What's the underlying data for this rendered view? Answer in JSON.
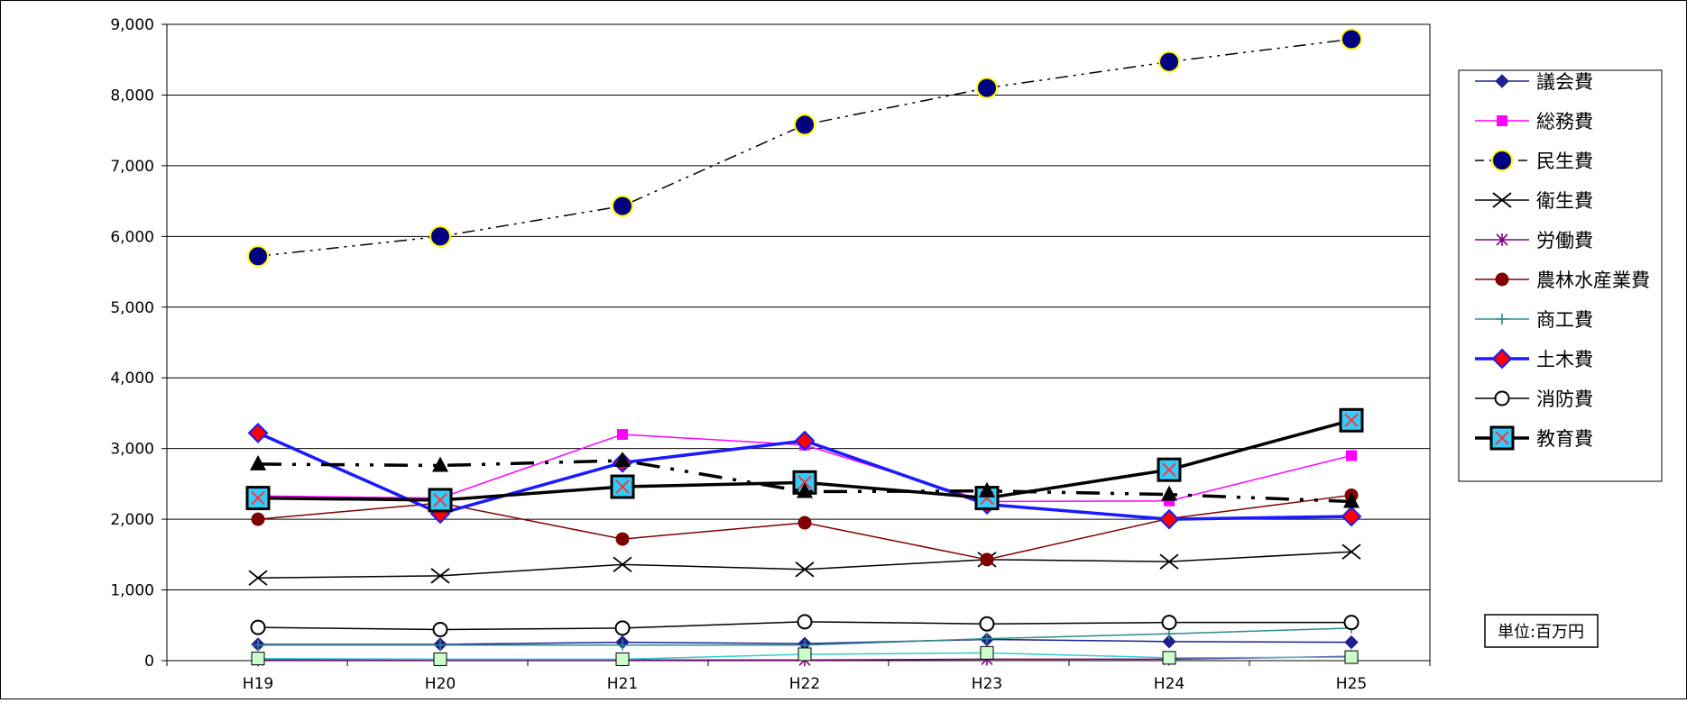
{
  "chart_data": {
    "type": "line",
    "categories": [
      "H19",
      "H20",
      "H21",
      "H22",
      "H23",
      "H24",
      "H25"
    ],
    "ylim": [
      0,
      9000
    ],
    "yticks": [
      "0",
      "1,000",
      "2,000",
      "3,000",
      "4,000",
      "5,000",
      "6,000",
      "7,000",
      "8,000",
      "9,000"
    ],
    "grid": true,
    "legend_position": "right",
    "unit_label": "単位:百万円",
    "series": [
      {
        "name": "議会費",
        "values": [
          230,
          230,
          260,
          240,
          300,
          270,
          260
        ],
        "color": "#1f1f8f",
        "marker": "diamond",
        "line": "solid",
        "width": 1.5
      },
      {
        "name": "総務費",
        "values": [
          2330,
          2300,
          3200,
          3050,
          2250,
          2260,
          2900
        ],
        "color": "#ff00ff",
        "marker": "square",
        "line": "solid",
        "width": 1.5
      },
      {
        "name": "民生費",
        "values": [
          5720,
          6000,
          6430,
          7580,
          8100,
          8470,
          8790
        ],
        "color": "#000000",
        "marker": "navycircle",
        "line": "dashdotdot",
        "width": 1.5
      },
      {
        "name": "衛生費",
        "values": [
          1170,
          1200,
          1360,
          1290,
          1430,
          1400,
          1540
        ],
        "color": "#000000",
        "marker": "x",
        "line": "solid",
        "width": 1.5
      },
      {
        "name": "労働費",
        "values": [
          10,
          10,
          10,
          10,
          20,
          20,
          60
        ],
        "color": "#800080",
        "marker": "star",
        "line": "solid",
        "width": 1.5
      },
      {
        "name": "農林水産業費",
        "values": [
          2000,
          2230,
          1720,
          1950,
          1430,
          2010,
          2340
        ],
        "color": "#800000",
        "marker": "circle",
        "line": "solid",
        "width": 1.5
      },
      {
        "name": "商工費",
        "values": [
          220,
          220,
          220,
          220,
          310,
          380,
          460
        ],
        "color": "#2e8b8b",
        "marker": "plus",
        "line": "solid",
        "width": 1.5
      },
      {
        "name": "土木費",
        "values": [
          3220,
          2080,
          2800,
          3110,
          2210,
          2000,
          2040
        ],
        "color": "#1a1aff",
        "marker": "reddiamond",
        "line": "solid",
        "width": 3.5
      },
      {
        "name": "消防費",
        "values": [
          470,
          440,
          460,
          550,
          520,
          540,
          540
        ],
        "color": "#000000",
        "marker": "opencircle",
        "line": "solid",
        "width": 1.5
      },
      {
        "name": "教育費",
        "values": [
          2300,
          2270,
          2460,
          2520,
          2300,
          2700,
          3400
        ],
        "color": "#000000",
        "marker": "cyanx",
        "line": "solid",
        "width": 3.5
      },
      {
        "name": "",
        "values": [
          2780,
          2760,
          2830,
          2390,
          2400,
          2350,
          2250
        ],
        "color": "#000000",
        "marker": "triangle",
        "line": "dashdot",
        "width": 3.5
      },
      {
        "name": "",
        "values": [
          30,
          20,
          20,
          90,
          110,
          40,
          50
        ],
        "color": "#33cccc",
        "marker": "greensquare",
        "line": "solid",
        "width": 1.5
      }
    ]
  }
}
